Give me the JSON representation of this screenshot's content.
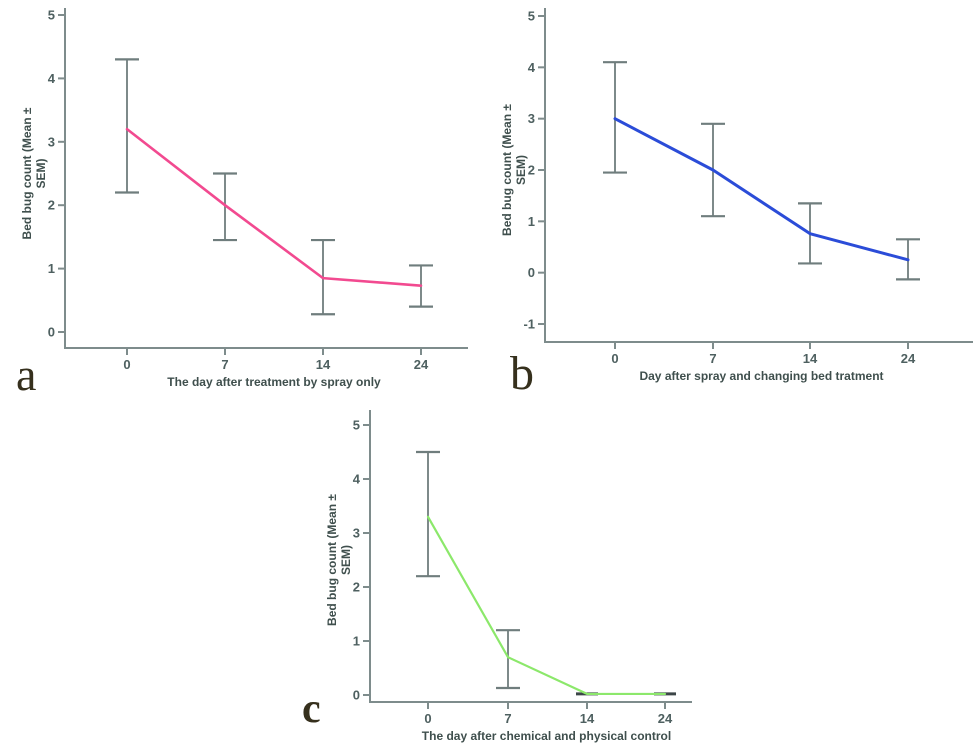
{
  "figure": {
    "background": "#ffffff",
    "axis_color": "#7e8c8c",
    "errorbar_color": "#6f7d7d",
    "zero_bar_color": "#3c4648",
    "tick_label_color": "#4e6060",
    "axis_label_color": "#3f4f4d",
    "panel_letter_color": "#36301d"
  },
  "chart_data": [
    {
      "id": "a",
      "panel_label": "a",
      "type": "line",
      "title": "",
      "xlabel": "The day after treatment by spray only",
      "ylabel": "Bed bug count (Mean ± SEM)",
      "ylabel_lines": [
        "Bed bug count (Mean ±",
        "SEM)"
      ],
      "x": [
        0,
        7,
        14,
        24
      ],
      "x_tick_labels": [
        "0",
        "7",
        "14",
        "24"
      ],
      "yticks": [
        0,
        1,
        2,
        3,
        4,
        5
      ],
      "ylim": [
        0,
        5
      ],
      "grid": false,
      "legend": "none",
      "line_color": "#f24a90",
      "series": [
        {
          "name": "Mean bed bug count",
          "values": [
            3.2,
            2.0,
            0.85,
            0.73
          ]
        }
      ],
      "error_low": [
        2.2,
        1.45,
        0.28,
        0.4
      ],
      "error_high": [
        4.3,
        2.5,
        1.45,
        1.05
      ]
    },
    {
      "id": "b",
      "panel_label": "b",
      "type": "line",
      "title": "",
      "xlabel": "Day after spray and changing bed tratment",
      "ylabel": "Bed bug count (Mean ± SEM)",
      "ylabel_lines": [
        "Bed bug count (Mean ±",
        "SEM)"
      ],
      "x": [
        0,
        7,
        14,
        24
      ],
      "x_tick_labels": [
        "0",
        "7",
        "14",
        "24"
      ],
      "yticks": [
        -1,
        0,
        1,
        2,
        3,
        4,
        5
      ],
      "ylim": [
        -1,
        5
      ],
      "grid": false,
      "legend": "none",
      "line_color": "#2b4cd8",
      "series": [
        {
          "name": "Mean bed bug count",
          "values": [
            3.0,
            2.0,
            0.76,
            0.25
          ]
        }
      ],
      "error_low": [
        1.95,
        1.1,
        0.18,
        -0.13
      ],
      "error_high": [
        4.1,
        2.9,
        1.35,
        0.65
      ]
    },
    {
      "id": "c",
      "panel_label": "c",
      "type": "line",
      "title": "",
      "xlabel": "The day after chemical and physical control",
      "ylabel": "Bed bug count (Mean ± SEM)",
      "ylabel_lines": [
        "Bed bug count (Mean ±",
        "SEM)"
      ],
      "x": [
        0,
        7,
        14,
        24
      ],
      "x_tick_labels": [
        "0",
        "7",
        "14",
        "24"
      ],
      "yticks": [
        0,
        1,
        2,
        3,
        4,
        5
      ],
      "ylim": [
        0,
        5
      ],
      "grid": false,
      "legend": "none",
      "line_color": "#8ce86b",
      "series": [
        {
          "name": "Mean bed bug count",
          "values": [
            3.3,
            0.7,
            0.02,
            0.02
          ]
        }
      ],
      "error_low": [
        2.2,
        0.13,
        0.02,
        0.02
      ],
      "error_high": [
        4.5,
        1.2,
        0.02,
        0.02
      ]
    }
  ]
}
